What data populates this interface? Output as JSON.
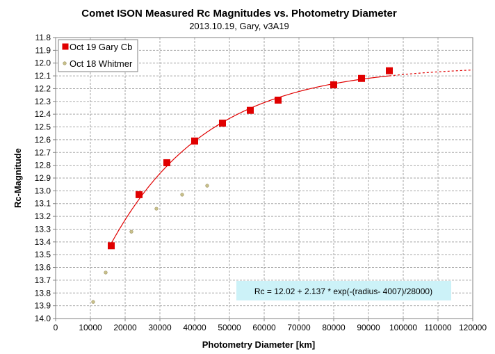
{
  "chart_data": {
    "type": "scatter",
    "title": "Comet ISON Measured Rc Magnitudes vs. Photometry Diameter",
    "subtitle": "2013.10.19,  Gary,  v3A19",
    "xlabel": "Photometry Diameter  [km]",
    "ylabel": "Rc-Magnitude",
    "xlim": [
      0,
      120000
    ],
    "ylim": [
      11.8,
      14.0
    ],
    "y_reversed": true,
    "x_ticks": [
      "0",
      "10000",
      "20000",
      "30000",
      "40000",
      "50000",
      "60000",
      "70000",
      "80000",
      "90000",
      "100000",
      "110000",
      "120000"
    ],
    "y_ticks": [
      "11.8",
      "11.9",
      "12.0",
      "12.1",
      "12.2",
      "12.3",
      "12.4",
      "12.5",
      "12.6",
      "12.7",
      "12.8",
      "12.9",
      "13.0",
      "13.1",
      "13.2",
      "13.3",
      "13.4",
      "13.5",
      "13.6",
      "13.7",
      "13.8",
      "13.9",
      "14.0"
    ],
    "grid": true,
    "legend_position": "top-left",
    "series": [
      {
        "name": "Oct 19 Gary Cb",
        "marker": "square",
        "color": "#e00000",
        "x": [
          16000,
          24000,
          32000,
          40000,
          48000,
          56000,
          64000,
          80000,
          88000,
          96000
        ],
        "y": [
          13.43,
          13.03,
          12.78,
          12.61,
          12.47,
          12.37,
          12.29,
          12.17,
          12.12,
          12.06
        ]
      },
      {
        "name": "Oct 18 Whitmer",
        "marker": "circle",
        "color": "#c8c08a",
        "x": [
          10800,
          14400,
          21800,
          29000,
          36400,
          43600
        ],
        "y": [
          13.87,
          13.64,
          13.32,
          13.14,
          13.03,
          12.96
        ]
      }
    ],
    "fit_curve": {
      "color": "#e00000",
      "c0": 12.02,
      "c1": 2.137,
      "offset": 4007,
      "scale": 28000,
      "solid_range": [
        16000,
        96000
      ],
      "dashed_range": [
        96000,
        120000
      ],
      "label": "Rc = 12.02  + 2.137  *  exp(-(radius- 4007)/28000)"
    },
    "equation_box_color": "#ccf2f8"
  }
}
